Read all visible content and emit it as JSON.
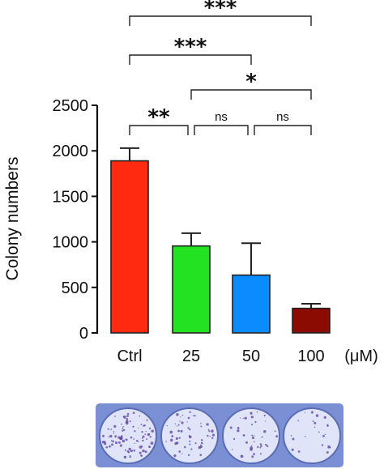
{
  "chart_data": {
    "type": "bar",
    "title": "",
    "xlabel": "",
    "ylabel": "Colony numbers",
    "unit_label": "(μM)",
    "categories": [
      "Ctrl",
      "25",
      "50",
      "100"
    ],
    "values": [
      1890,
      955,
      635,
      270
    ],
    "errors": [
      140,
      140,
      350,
      50
    ],
    "colors": [
      "#ff2a10",
      "#22e222",
      "#0a8cff",
      "#8b0a02"
    ],
    "ylim": [
      0,
      2500
    ],
    "yticks": [
      0,
      500,
      1000,
      1500,
      2000,
      2500
    ],
    "grid": false,
    "significance": [
      {
        "from": "Ctrl",
        "to": "100",
        "label": "***"
      },
      {
        "from": "Ctrl",
        "to": "50",
        "label": "***"
      },
      {
        "from": "25",
        "to": "100",
        "label": "*"
      },
      {
        "from": "Ctrl",
        "to": "25",
        "label": "**"
      },
      {
        "from": "25",
        "to": "50",
        "label": "ns"
      },
      {
        "from": "50",
        "to": "100",
        "label": "ns"
      }
    ]
  },
  "plate": {
    "well_count": 4,
    "frame_color": "#7b8fd4",
    "well_color": "#dfe4f8",
    "stain_color": "#5b3fa0"
  }
}
